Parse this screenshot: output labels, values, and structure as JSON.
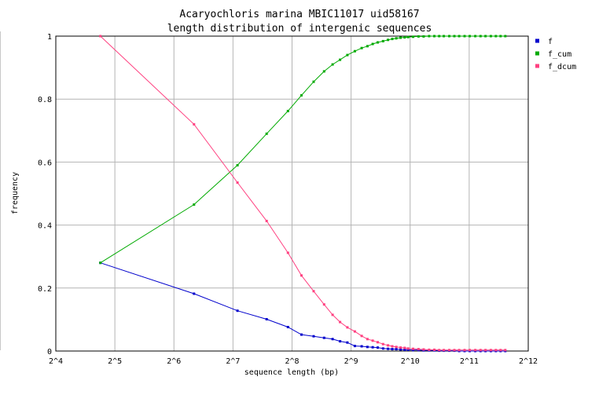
{
  "chart_data": {
    "type": "line",
    "title": "Acaryochloris marina MBIC11017 uid58167",
    "subtitle": "length distribution of intergenic sequences",
    "xlabel": "sequence length (bp)",
    "ylabel": "frequency",
    "x_scale": "log2",
    "xlim": [
      16,
      4096
    ],
    "ylim": [
      0,
      1
    ],
    "x_tick_labels": [
      "2^4",
      "2^5",
      "2^6",
      "2^7",
      "2^8",
      "2^9",
      "2^10",
      "2^11",
      "2^12"
    ],
    "x_tick_values": [
      16,
      32,
      64,
      128,
      256,
      512,
      1024,
      2048,
      4096
    ],
    "y_tick_labels": [
      "0",
      "0.2",
      "0.4",
      "0.6",
      "0.8",
      "1"
    ],
    "y_tick_values": [
      0,
      0.2,
      0.4,
      0.6,
      0.8,
      1
    ],
    "grid": true,
    "legend_position": "top-right, outside plot",
    "series": [
      {
        "name": "f",
        "color": "#0000cc",
        "points": [
          [
            27,
            0.28
          ],
          [
            81,
            0.182
          ],
          [
            135,
            0.128
          ],
          [
            190,
            0.101
          ],
          [
            244,
            0.076
          ],
          [
            286,
            0.052
          ],
          [
            330,
            0.047
          ],
          [
            373,
            0.042
          ],
          [
            412,
            0.038
          ],
          [
            450,
            0.031
          ],
          [
            490,
            0.027
          ],
          [
            535,
            0.016
          ],
          [
            580,
            0.015
          ],
          [
            620,
            0.013
          ],
          [
            660,
            0.012
          ],
          [
            700,
            0.011
          ],
          [
            745,
            0.008
          ],
          [
            790,
            0.007
          ],
          [
            830,
            0.006
          ],
          [
            870,
            0.006
          ],
          [
            915,
            0.005
          ],
          [
            960,
            0.004
          ],
          [
            1000,
            0.004
          ],
          [
            1060,
            0.003
          ],
          [
            1130,
            0.003
          ],
          [
            1200,
            0.002
          ],
          [
            1280,
            0.002
          ],
          [
            1360,
            0.002
          ],
          [
            1440,
            0.001
          ],
          [
            1520,
            0.001
          ],
          [
            1620,
            0.001
          ],
          [
            1720,
            0.001
          ],
          [
            1820,
            0.0
          ],
          [
            1940,
            0.0
          ],
          [
            2060,
            0.0
          ],
          [
            2200,
            0.0
          ],
          [
            2340,
            0.0
          ],
          [
            2480,
            0.0
          ],
          [
            2640,
            0.0
          ],
          [
            2800,
            0.0
          ],
          [
            2960,
            0.0
          ],
          [
            3130,
            0.0
          ]
        ]
      },
      {
        "name": "f_cum",
        "color": "#00aa00",
        "points": [
          [
            27,
            0.28
          ],
          [
            81,
            0.465
          ],
          [
            135,
            0.59
          ],
          [
            190,
            0.69
          ],
          [
            244,
            0.762
          ],
          [
            286,
            0.812
          ],
          [
            330,
            0.855
          ],
          [
            373,
            0.888
          ],
          [
            412,
            0.91
          ],
          [
            450,
            0.925
          ],
          [
            490,
            0.94
          ],
          [
            535,
            0.952
          ],
          [
            580,
            0.962
          ],
          [
            620,
            0.968
          ],
          [
            660,
            0.975
          ],
          [
            700,
            0.98
          ],
          [
            745,
            0.984
          ],
          [
            790,
            0.988
          ],
          [
            830,
            0.991
          ],
          [
            870,
            0.993
          ],
          [
            915,
            0.995
          ],
          [
            960,
            0.996
          ],
          [
            1000,
            0.997
          ],
          [
            1060,
            0.998
          ],
          [
            1130,
            0.999
          ],
          [
            1200,
            0.999
          ],
          [
            1280,
            1.0
          ],
          [
            1360,
            1.0
          ],
          [
            1440,
            1.0
          ],
          [
            1520,
            1.0
          ],
          [
            1620,
            1.0
          ],
          [
            1720,
            1.0
          ],
          [
            1820,
            1.0
          ],
          [
            1940,
            1.0
          ],
          [
            2060,
            1.0
          ],
          [
            2200,
            1.0
          ],
          [
            2340,
            1.0
          ],
          [
            2480,
            1.0
          ],
          [
            2640,
            1.0
          ],
          [
            2800,
            1.0
          ],
          [
            2960,
            1.0
          ],
          [
            3130,
            1.0
          ]
        ]
      },
      {
        "name": "f_dcum",
        "color": "#ff4080",
        "points": [
          [
            27,
            1.0
          ],
          [
            81,
            0.72
          ],
          [
            135,
            0.535
          ],
          [
            190,
            0.413
          ],
          [
            244,
            0.312
          ],
          [
            286,
            0.24
          ],
          [
            330,
            0.19
          ],
          [
            373,
            0.148
          ],
          [
            412,
            0.115
          ],
          [
            450,
            0.092
          ],
          [
            490,
            0.075
          ],
          [
            535,
            0.062
          ],
          [
            580,
            0.048
          ],
          [
            620,
            0.038
          ],
          [
            660,
            0.033
          ],
          [
            700,
            0.028
          ],
          [
            745,
            0.022
          ],
          [
            790,
            0.018
          ],
          [
            830,
            0.015
          ],
          [
            870,
            0.013
          ],
          [
            915,
            0.011
          ],
          [
            960,
            0.01
          ],
          [
            1000,
            0.008
          ],
          [
            1060,
            0.007
          ],
          [
            1130,
            0.006
          ],
          [
            1200,
            0.005
          ],
          [
            1280,
            0.004
          ],
          [
            1360,
            0.004
          ],
          [
            1440,
            0.003
          ],
          [
            1520,
            0.003
          ],
          [
            1620,
            0.003
          ],
          [
            1720,
            0.003
          ],
          [
            1820,
            0.003
          ],
          [
            1940,
            0.003
          ],
          [
            2060,
            0.003
          ],
          [
            2200,
            0.003
          ],
          [
            2340,
            0.003
          ],
          [
            2480,
            0.003
          ],
          [
            2640,
            0.003
          ],
          [
            2800,
            0.003
          ],
          [
            2960,
            0.003
          ],
          [
            3130,
            0.003
          ]
        ]
      }
    ]
  }
}
